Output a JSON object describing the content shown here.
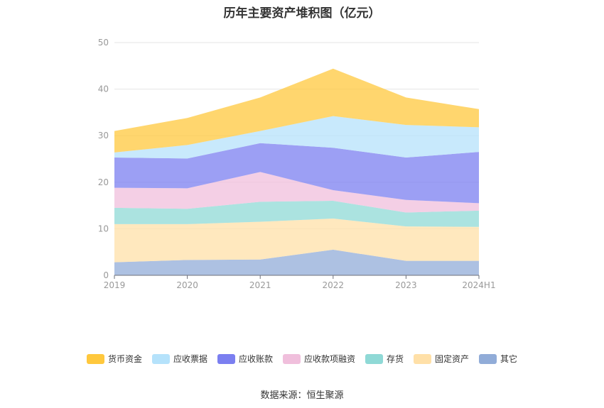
{
  "chart_data": {
    "type": "area",
    "stacked": true,
    "title": "历年主要资产堆积图（亿元）",
    "categories": [
      "2019",
      "2020",
      "2021",
      "2022",
      "2023",
      "2024H1"
    ],
    "ylim": [
      0,
      50
    ],
    "yticks": [
      0,
      10,
      20,
      30,
      40,
      50
    ],
    "grid": true,
    "legend_position": "bottom",
    "series": [
      {
        "name": "其它",
        "color": "#91acd8",
        "values": [
          2.8,
          3.3,
          3.4,
          5.5,
          3.1,
          3.1
        ]
      },
      {
        "name": "固定资产",
        "color": "#ffe0a8",
        "values": [
          8.2,
          7.7,
          8.1,
          6.7,
          7.4,
          7.3
        ]
      },
      {
        "name": "存货",
        "color": "#8fd9d6",
        "values": [
          3.5,
          3.3,
          4.3,
          3.8,
          3.0,
          3.5
        ]
      },
      {
        "name": "应收款项融资",
        "color": "#f0bfdc",
        "values": [
          4.3,
          4.4,
          6.4,
          2.3,
          2.7,
          1.6
        ]
      },
      {
        "name": "应收账款",
        "color": "#7b7ff0",
        "values": [
          6.5,
          6.4,
          6.2,
          9.1,
          9.1,
          11.0
        ]
      },
      {
        "name": "应收票据",
        "color": "#b5e2fb",
        "values": [
          1.1,
          2.9,
          2.6,
          6.8,
          7.0,
          5.3
        ]
      },
      {
        "name": "货币资金",
        "color": "#ffc83d",
        "values": [
          4.6,
          5.8,
          7.2,
          10.2,
          5.9,
          3.9
        ]
      }
    ]
  },
  "legend_items": [
    "货币资金",
    "应收票据",
    "应收账款",
    "应收款项融资",
    "存货",
    "固定资产",
    "其它"
  ],
  "source": "数据来源：恒生聚源"
}
